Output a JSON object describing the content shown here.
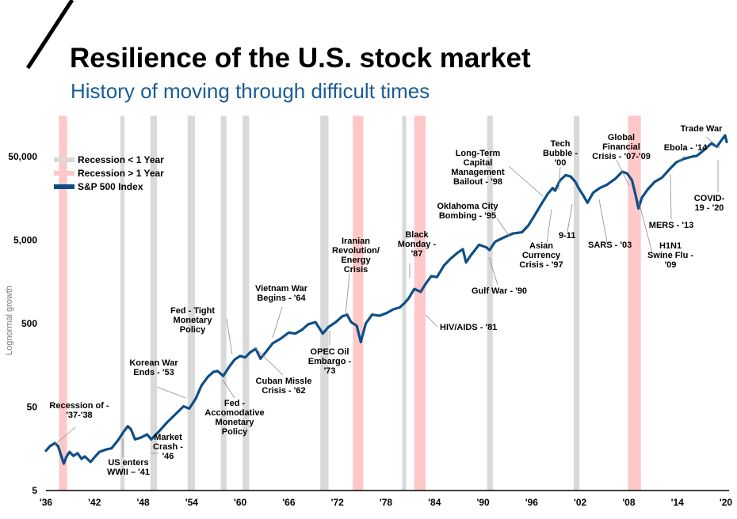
{
  "header": {
    "title": "Resilience of the U.S. stock market",
    "subtitle": "History of moving through difficult times"
  },
  "chart_data": {
    "type": "line",
    "title": "Resilience of the U.S. stock market",
    "subtitle": "History of moving through difficult times",
    "ylabel": "Lognormal growth",
    "yscale": "log",
    "ylim": [
      5,
      100000
    ],
    "xlim": [
      1936,
      2020
    ],
    "y_ticks": [
      "5",
      "50",
      "500",
      "5,000",
      "50,000"
    ],
    "y_tick_values": [
      5,
      50,
      500,
      5000,
      50000
    ],
    "x_ticks": [
      "'36",
      "'42",
      "'48",
      "'54",
      "'60",
      "'66",
      "'72",
      "'78",
      "'84",
      "'90",
      "'96",
      "'02",
      "'08",
      "'14",
      "'20"
    ],
    "x_tick_values": [
      1936,
      1942,
      1948,
      1954,
      1960,
      1966,
      1972,
      1978,
      1984,
      1990,
      1996,
      2002,
      2008,
      2014,
      2020
    ],
    "colors": {
      "line": "#0d4e87",
      "short_recession": "#d9d9d9",
      "long_recession": "#ffc8c8",
      "leader": "#8c8c8c"
    },
    "legend": {
      "position": "top-left",
      "items": [
        {
          "label": "Recession < 1 Year",
          "kind": "short_recession"
        },
        {
          "label": "Recession > 1 Year",
          "kind": "long_recession"
        },
        {
          "label": "S&P 500 Index",
          "kind": "line"
        }
      ]
    },
    "recessions": [
      {
        "start": 1937.6,
        "end": 1938.6,
        "kind": "long"
      },
      {
        "start": 1945.2,
        "end": 1945.7,
        "kind": "short"
      },
      {
        "start": 1948.9,
        "end": 1949.7,
        "kind": "short"
      },
      {
        "start": 1953.5,
        "end": 1954.4,
        "kind": "short"
      },
      {
        "start": 1957.6,
        "end": 1958.3,
        "kind": "short"
      },
      {
        "start": 1960.3,
        "end": 1961.1,
        "kind": "short"
      },
      {
        "start": 1969.9,
        "end": 1970.9,
        "kind": "short"
      },
      {
        "start": 1973.9,
        "end": 1975.2,
        "kind": "long"
      },
      {
        "start": 1980.0,
        "end": 1980.5,
        "kind": "short"
      },
      {
        "start": 1981.5,
        "end": 1982.9,
        "kind": "long"
      },
      {
        "start": 1990.5,
        "end": 1991.2,
        "kind": "short"
      },
      {
        "start": 2001.2,
        "end": 2001.9,
        "kind": "short"
      },
      {
        "start": 2007.9,
        "end": 2009.5,
        "kind": "long"
      }
    ],
    "series": [
      {
        "name": "S&P 500 Index",
        "x": [
          1936.0,
          1936.5,
          1937.1,
          1937.5,
          1938.2,
          1938.5,
          1938.9,
          1939.4,
          1939.9,
          1940.4,
          1940.8,
          1941.5,
          1942.0,
          1942.6,
          1943.4,
          1944.1,
          1944.9,
          1945.5,
          1946.1,
          1946.5,
          1947.0,
          1947.7,
          1948.5,
          1949.0,
          1949.5,
          1950.2,
          1951.0,
          1952.0,
          1953.0,
          1953.7,
          1954.5,
          1955.2,
          1956.0,
          1956.7,
          1957.2,
          1957.9,
          1958.6,
          1959.3,
          1960.0,
          1960.6,
          1961.2,
          1961.9,
          1962.5,
          1963.2,
          1964.0,
          1965.0,
          1966.0,
          1966.8,
          1967.6,
          1968.4,
          1969.3,
          1970.2,
          1970.9,
          1971.8,
          1972.6,
          1973.2,
          1973.7,
          1974.4,
          1974.9,
          1975.5,
          1976.3,
          1977.2,
          1978.1,
          1978.9,
          1979.7,
          1980.3,
          1980.8,
          1981.5,
          1982.3,
          1982.9,
          1983.6,
          1984.3,
          1985.2,
          1986.0,
          1986.8,
          1987.5,
          1987.9,
          1988.5,
          1989.5,
          1990.4,
          1990.8,
          1991.5,
          1992.6,
          1993.7,
          1994.8,
          1995.6,
          1996.4,
          1997.2,
          1998.0,
          1998.6,
          1998.9,
          1999.5,
          2000.2,
          2000.8,
          2001.4,
          2001.8,
          2002.4,
          2002.9,
          2003.6,
          2004.4,
          2005.3,
          2006.3,
          2007.2,
          2007.8,
          2008.4,
          2008.8,
          2009.2,
          2009.6,
          2010.3,
          2011.2,
          2012.1,
          2013.0,
          2013.9,
          2014.8,
          2015.8,
          2016.4,
          2017.3,
          2018.2,
          2018.9,
          2019.5,
          2019.9,
          2020.1
        ],
        "y": [
          15.0,
          17.0,
          18.5,
          17.0,
          10.5,
          12.5,
          14.5,
          13.0,
          14.0,
          12.0,
          12.8,
          11.0,
          12.5,
          14.5,
          15.5,
          16.0,
          20.0,
          24.5,
          29.5,
          27.0,
          20.5,
          21.5,
          23.5,
          20.5,
          23.0,
          27.0,
          33.0,
          41.0,
          51.0,
          48.0,
          63.0,
          90.0,
          115.0,
          132.0,
          135.0,
          118.0,
          150.0,
          185.0,
          205.0,
          196.0,
          225.0,
          250.0,
          190.0,
          230.0,
          290.0,
          330.0,
          390.0,
          380.0,
          420.0,
          490.0,
          520.0,
          380.0,
          455.0,
          520.0,
          610.0,
          640.0,
          520.0,
          470.0,
          300.0,
          500.0,
          640.0,
          620.0,
          670.0,
          740.0,
          780.0,
          880.0,
          1000.0,
          1300.0,
          1200.0,
          1500.0,
          1850.0,
          1800.0,
          2500.0,
          3000.0,
          3500.0,
          3900.0,
          2700.0,
          3300.0,
          4400.0,
          4100.0,
          3800.0,
          4800.0,
          5400.0,
          6000.0,
          6200.0,
          7500.0,
          10000.0,
          13500.0,
          18000.0,
          21000.0,
          19500.0,
          26000.0,
          30000.0,
          29000.0,
          25000.0,
          21000.0,
          17000.0,
          14000.0,
          18500.0,
          21000.0,
          23000.0,
          27000.0,
          33000.0,
          31500.0,
          26000.0,
          18000.0,
          12000.0,
          16000.0,
          20000.0,
          25000.0,
          28000.0,
          35000.0,
          43000.0,
          47000.0,
          50000.0,
          51000.0,
          60000.0,
          72000.0,
          66000.0,
          80000.0,
          90000.0,
          75000.0
        ]
      }
    ],
    "annotations": [
      {
        "lines": [
          "Recession of  -",
          "'37-'38"
        ]
      },
      {
        "lines": [
          "US enters",
          "WWII – '41"
        ]
      },
      {
        "lines": [
          "Market",
          "Crash -",
          "'46"
        ]
      },
      {
        "lines": [
          "Korean War",
          "Ends - '53"
        ]
      },
      {
        "lines": [
          "Fed - Tight",
          "Monetary",
          "Policy"
        ]
      },
      {
        "lines": [
          "Fed -",
          "Accomodative",
          "Monetary",
          "Policy"
        ]
      },
      {
        "lines": [
          "Vietnam War",
          "Begins - '64"
        ]
      },
      {
        "lines": [
          "Cuban Missle",
          "Crisis - '62"
        ]
      },
      {
        "lines": [
          "OPEC Oil",
          "Embargo -",
          "'73"
        ]
      },
      {
        "lines": [
          "Iranian",
          "Revolution/",
          "Energy",
          "Crisis"
        ]
      },
      {
        "lines": [
          "Black",
          "Monday -",
          "'87"
        ]
      },
      {
        "lines": [
          "HIV/AIDS - '81"
        ]
      },
      {
        "lines": [
          "Oklahoma City",
          "Bombing - '95"
        ]
      },
      {
        "lines": [
          "Long-Term",
          "Capital",
          "Management",
          "Bailout - '98"
        ]
      },
      {
        "lines": [
          "Gulf War - '90"
        ]
      },
      {
        "lines": [
          "Asian",
          "Currency",
          "Crisis - '97"
        ]
      },
      {
        "lines": [
          "Tech",
          "Bubble -",
          "'00"
        ]
      },
      {
        "lines": [
          "9-11"
        ]
      },
      {
        "lines": [
          "Global",
          "Financial",
          "Crisis - '07-'09"
        ]
      },
      {
        "lines": [
          "SARS - '03"
        ]
      },
      {
        "lines": [
          "H1N1",
          "Swine Flu -",
          "'09"
        ]
      },
      {
        "lines": [
          "Ebola - '14"
        ]
      },
      {
        "lines": [
          "MERS - '13"
        ]
      },
      {
        "lines": [
          "Trade War"
        ]
      },
      {
        "lines": [
          "COVID-",
          "19 - '20"
        ]
      }
    ]
  }
}
